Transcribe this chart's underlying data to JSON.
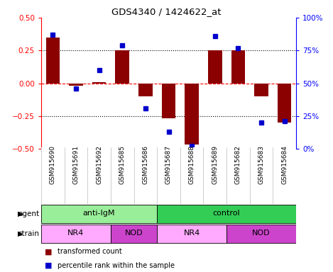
{
  "title": "GDS4340 / 1424622_at",
  "samples": [
    "GSM915690",
    "GSM915691",
    "GSM915692",
    "GSM915685",
    "GSM915686",
    "GSM915687",
    "GSM915688",
    "GSM915689",
    "GSM915682",
    "GSM915683",
    "GSM915684"
  ],
  "bar_values": [
    0.35,
    -0.02,
    0.01,
    0.25,
    -0.1,
    -0.27,
    -0.47,
    0.25,
    0.25,
    -0.1,
    -0.3
  ],
  "dot_values": [
    87,
    46,
    60,
    79,
    31,
    13,
    2,
    86,
    77,
    20,
    21
  ],
  "bar_color": "#8B0000",
  "dot_color": "#0000CC",
  "ylim_left": [
    -0.5,
    0.5
  ],
  "ylim_right": [
    0,
    100
  ],
  "yticks_left": [
    -0.5,
    -0.25,
    0.0,
    0.25,
    0.5
  ],
  "yticks_right": [
    0,
    25,
    50,
    75,
    100
  ],
  "ytick_labels_right": [
    "0%",
    "25%",
    "50%",
    "75%",
    "100%"
  ],
  "agent_groups": [
    {
      "label": "anti-IgM",
      "start": 0,
      "end": 5,
      "color": "#99EE99"
    },
    {
      "label": "control",
      "start": 5,
      "end": 11,
      "color": "#33CC55"
    }
  ],
  "strain_groups": [
    {
      "label": "NR4",
      "start": 0,
      "end": 3,
      "color": "#FFAAFF"
    },
    {
      "label": "NOD",
      "start": 3,
      "end": 5,
      "color": "#CC44CC"
    },
    {
      "label": "NR4",
      "start": 5,
      "end": 8,
      "color": "#FFAAFF"
    },
    {
      "label": "NOD",
      "start": 8,
      "end": 11,
      "color": "#CC44CC"
    }
  ],
  "legend_bar_label": "transformed count",
  "legend_dot_label": "percentile rank within the sample",
  "agent_label": "agent",
  "strain_label": "strain"
}
